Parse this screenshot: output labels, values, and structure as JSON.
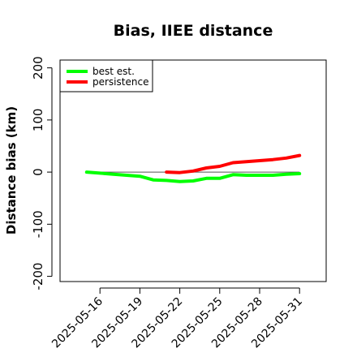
{
  "chart_data": {
    "type": "line",
    "title": "Bias, IIEE distance",
    "xlabel": "",
    "ylabel": "Distance bias (km)",
    "ylim": [
      -210,
      215
    ],
    "yticks": [
      -200,
      -100,
      0,
      100,
      200
    ],
    "xlim": [
      "2025-05-13",
      "2025-06-02"
    ],
    "xticks": [
      "2025-05-16",
      "2025-05-19",
      "2025-05-22",
      "2025-05-25",
      "2025-05-28",
      "2025-05-31"
    ],
    "reference_line": 0,
    "legend_position": "top-left",
    "series": [
      {
        "name": "best est.",
        "color": "#00ff00",
        "x": [
          "2025-05-15",
          "2025-05-16",
          "2025-05-17",
          "2025-05-18",
          "2025-05-19",
          "2025-05-20",
          "2025-05-21",
          "2025-05-22",
          "2025-05-23",
          "2025-05-24",
          "2025-05-25",
          "2025-05-26",
          "2025-05-27",
          "2025-05-28",
          "2025-05-29",
          "2025-05-30",
          "2025-05-31"
        ],
        "y": [
          0,
          -2,
          -4,
          -6,
          -8,
          -15,
          -16,
          -18,
          -17,
          -12,
          -12,
          -5,
          -6,
          -6,
          -6,
          -4,
          -3
        ]
      },
      {
        "name": "persistence",
        "color": "#ff0000",
        "x": [
          "2025-05-21",
          "2025-05-22",
          "2025-05-23",
          "2025-05-24",
          "2025-05-25",
          "2025-05-26",
          "2025-05-27",
          "2025-05-28",
          "2025-05-29",
          "2025-05-30",
          "2025-05-31"
        ],
        "y": [
          0,
          -1,
          2,
          8,
          11,
          18,
          20,
          22,
          24,
          27,
          32
        ]
      }
    ]
  }
}
